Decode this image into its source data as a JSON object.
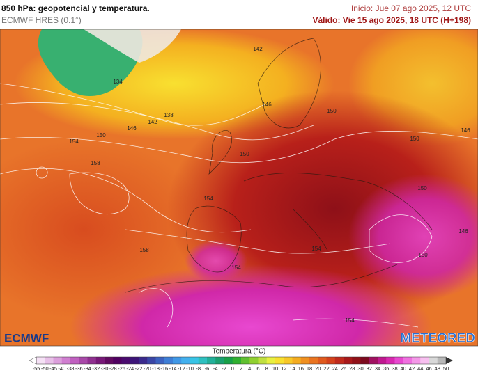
{
  "header": {
    "title": "850 hPa: geopotencial y temperatura.",
    "model": "ECMWF HRES (0.1°)",
    "init": "Inicio: Jue 07 ago 2025, 12 UTC",
    "valid": "Válido: Vie 15 ago 2025, 18 UTC (H+198)"
  },
  "map": {
    "contour_labels": [
      "142",
      "134",
      "146",
      "138",
      "142",
      "146",
      "150",
      "150",
      "154",
      "146",
      "150",
      "150",
      "158",
      "150",
      "154",
      "146",
      "158",
      "154",
      "150",
      "154",
      "154"
    ]
  },
  "logos": {
    "left": "ECMWF",
    "right": "METEORED"
  },
  "colorbar": {
    "title": "Temperatura (°C)",
    "ticks": [
      -55,
      -50,
      -45,
      -40,
      -38,
      -36,
      -34,
      -32,
      -30,
      -28,
      -26,
      -24,
      -22,
      -20,
      -18,
      -16,
      -14,
      -12,
      -10,
      -8,
      -6,
      -4,
      -2,
      0,
      2,
      4,
      6,
      8,
      10,
      12,
      14,
      16,
      18,
      20,
      22,
      24,
      26,
      28,
      30,
      32,
      34,
      36,
      38,
      40,
      42,
      44,
      46,
      48,
      50
    ],
    "colors": [
      "#f5e1f5",
      "#e8c0e8",
      "#dc9fdc",
      "#d07ed0",
      "#c060c0",
      "#a848a8",
      "#903090",
      "#781878",
      "#600a60",
      "#500060",
      "#4a0a6e",
      "#3c1478",
      "#3a2a8c",
      "#3a46a6",
      "#3c62c0",
      "#3e7ed6",
      "#4098e6",
      "#42b0ee",
      "#38c4e6",
      "#2ec0c0",
      "#22b09a",
      "#1aa070",
      "#18a048",
      "#30b030",
      "#60c030",
      "#90d030",
      "#c0e040",
      "#e8f040",
      "#f8e030",
      "#f8c828",
      "#f4ac20",
      "#f09020",
      "#ea7420",
      "#e05a1e",
      "#d4421c",
      "#c02a1c",
      "#a8181a",
      "#901018",
      "#7c0a1e",
      "#a01060",
      "#c01890",
      "#d828b0",
      "#e848d0",
      "#f070e0",
      "#f498e8",
      "#f8c0f0",
      "#d8d8d8",
      "#b8b8b8"
    ]
  }
}
